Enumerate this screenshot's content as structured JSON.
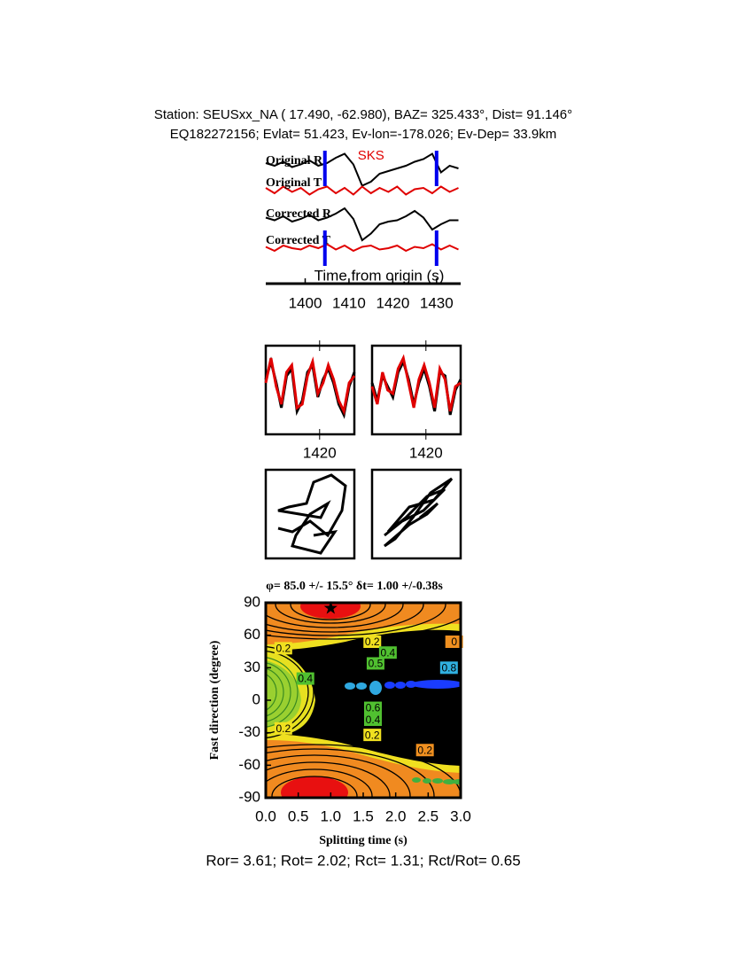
{
  "header": {
    "line1": "Station: SEUSxx_NA (  17.490,  -62.980), BAZ=  325.433°, Dist=   91.146°",
    "line2": "EQ182272156; Evlat=  51.423, Ev-lon=-178.026; Ev-Dep= 33.9km"
  },
  "chart_data": [
    {
      "type": "line",
      "xlabel": "Time from origin (s)",
      "annotation": "SKS",
      "annotation_color": "#e00000",
      "x": [
        1391,
        1393,
        1395,
        1397,
        1399,
        1401,
        1403,
        1405,
        1407,
        1409,
        1411,
        1413,
        1415,
        1417,
        1419,
        1421,
        1423,
        1425,
        1427,
        1429,
        1431,
        1433,
        1435
      ],
      "xlim": [
        1391,
        1435.5
      ],
      "xticks": [
        1400,
        1410,
        1420,
        1430
      ],
      "ylim": [
        -2,
        2
      ],
      "markers": [
        1404.5,
        1430
      ],
      "marker_color": "#0000ee",
      "series": [
        {
          "name": "Original R",
          "color": "#000000",
          "values": [
            0.4,
            0.2,
            0.5,
            0.1,
            0.3,
            0.6,
            0.2,
            0.4,
            0.8,
            1.1,
            0.3,
            -1.3,
            -1.0,
            -0.4,
            -0.2,
            0.0,
            0.2,
            0.5,
            0.7,
            1.1,
            -0.3,
            0.2,
            0.0
          ]
        },
        {
          "name": "Original T",
          "color": "#e00000",
          "values": [
            0.2,
            -0.2,
            0.3,
            -0.1,
            0.2,
            -0.3,
            0.1,
            0.3,
            -0.2,
            0.2,
            -0.3,
            0.3,
            -0.2,
            0.2,
            -0.1,
            0.3,
            -0.3,
            0.1,
            0.2,
            -0.2,
            0.3,
            -0.1,
            0.2
          ]
        },
        {
          "name": "Corrected R",
          "color": "#000000",
          "values": [
            0.3,
            0.1,
            0.4,
            0.0,
            0.2,
            0.5,
            0.1,
            0.3,
            0.6,
            1.0,
            0.2,
            -1.4,
            -0.9,
            -0.2,
            0.0,
            0.1,
            0.4,
            0.8,
            0.3,
            -0.6,
            -0.2,
            0.1,
            0.1
          ]
        },
        {
          "name": "Corrected T",
          "color": "#e00000",
          "values": [
            0.1,
            -0.2,
            0.2,
            0.0,
            -0.1,
            0.2,
            0.0,
            0.3,
            -0.1,
            0.2,
            -0.2,
            0.1,
            0.2,
            -0.1,
            0.0,
            0.2,
            -0.2,
            0.1,
            0.0,
            0.3,
            -0.1,
            0.2,
            -0.1
          ]
        }
      ]
    },
    {
      "type": "line",
      "x": [
        1404.5,
        1406,
        1407.5,
        1409,
        1410.5,
        1412,
        1413.5,
        1415,
        1416.5,
        1418,
        1419.5,
        1421,
        1422.5,
        1424,
        1425.5,
        1427,
        1428.5,
        1430
      ],
      "xlim": [
        1404.5,
        1430
      ],
      "xticks": [
        1420
      ],
      "ylim": [
        -1.25,
        1.25
      ],
      "series": [
        {
          "color": "#000000",
          "values": [
            0.3,
            0.8,
            0.2,
            -0.5,
            0.4,
            0.6,
            -0.6,
            -0.3,
            0.5,
            0.7,
            -0.2,
            0.3,
            0.6,
            0.2,
            -0.4,
            -0.7,
            0.1,
            0.5
          ]
        },
        {
          "color": "#e00000",
          "values": [
            0.2,
            0.9,
            0.1,
            -0.4,
            0.5,
            0.7,
            -0.5,
            -0.4,
            0.4,
            0.8,
            -0.1,
            0.2,
            0.7,
            0.3,
            -0.3,
            -0.6,
            0.2,
            0.4
          ]
        }
      ]
    },
    {
      "type": "line",
      "x": [
        1404.5,
        1406,
        1407.5,
        1409,
        1410.5,
        1412,
        1413.5,
        1415,
        1416.5,
        1418,
        1419.5,
        1421,
        1422.5,
        1424,
        1425.5,
        1427,
        1428.5,
        1430
      ],
      "xlim": [
        1404.5,
        1430
      ],
      "xticks": [
        1420
      ],
      "ylim": [
        -1.25,
        1.25
      ],
      "series": [
        {
          "color": "#000000",
          "values": [
            0.2,
            -0.3,
            0.4,
            0.1,
            -0.2,
            0.5,
            0.8,
            0.3,
            -0.4,
            0.2,
            0.6,
            0.1,
            -0.6,
            0.5,
            0.4,
            -0.7,
            0.0,
            0.3
          ]
        },
        {
          "color": "#e00000",
          "values": [
            0.1,
            -0.4,
            0.5,
            0.0,
            -0.1,
            0.6,
            0.9,
            0.2,
            -0.5,
            0.3,
            0.7,
            0.2,
            -0.5,
            0.6,
            0.3,
            -0.6,
            0.1,
            0.2
          ]
        }
      ]
    },
    {
      "type": "line",
      "x": [
        -0.9,
        -0.5,
        0.0,
        0.5,
        0.9,
        1.0,
        0.6,
        0.1,
        -0.1,
        -0.6,
        -0.9,
        -0.3,
        0.3,
        0.5,
        0.0,
        -0.4,
        -0.5,
        0.3,
        0.7,
        0.1
      ],
      "xlim": [
        -1.25,
        1.25
      ],
      "ylim": [
        -1.25,
        1.25
      ],
      "series": [
        {
          "color": "#000000",
          "values": [
            -0.4,
            -0.5,
            -0.2,
            -0.6,
            0.1,
            0.8,
            1.1,
            0.9,
            0.3,
            0.2,
            0.1,
            0.0,
            -0.1,
            0.3,
            0.0,
            -0.6,
            -0.9,
            -1.1,
            -0.5,
            -0.6
          ]
        }
      ]
    },
    {
      "type": "line",
      "x": [
        -0.9,
        -0.4,
        0.2,
        0.8,
        0.3,
        -0.3,
        -0.8,
        -0.2,
        0.5,
        1.0,
        0.4,
        -0.1,
        -0.6,
        -0.9,
        -0.2,
        0.3,
        0.6,
        0.1
      ],
      "xlim": [
        -1.25,
        1.25
      ],
      "ylim": [
        -1.25,
        1.25
      ],
      "series": [
        {
          "color": "#000000",
          "values": [
            -0.6,
            -0.2,
            0.1,
            0.7,
            0.5,
            -0.1,
            -0.5,
            0.2,
            0.4,
            1.0,
            0.6,
            -0.1,
            -0.7,
            -0.9,
            -0.3,
            0.0,
            0.3,
            -0.1
          ]
        }
      ]
    },
    {
      "type": "contour",
      "title": "φ= 85.0 +/- 15.5° δt= 1.00 +/-0.38s",
      "xlabel": "Splitting time (s)",
      "ylabel": "Fast direction (degree)",
      "xlim": [
        0,
        3
      ],
      "ylim": [
        -90,
        90
      ],
      "xticks": [
        {
          "value": 0,
          "label": "0.0"
        },
        {
          "value": 0.5,
          "label": "0.5"
        },
        {
          "value": 1,
          "label": "1.0"
        },
        {
          "value": 1.5,
          "label": "1.5"
        },
        {
          "value": 2,
          "label": "2.0"
        },
        {
          "value": 2.5,
          "label": "2.5"
        },
        {
          "value": 3,
          "label": "3.0"
        }
      ],
      "yticks": [
        -90,
        -60,
        -30,
        0,
        30,
        60,
        90
      ],
      "best": {
        "x": 1.0,
        "y": 85
      },
      "contour_labels": [
        {
          "value": 0.2,
          "x": 1.64,
          "y": 54,
          "color": "#f0e020"
        },
        {
          "value": 0.4,
          "x": 1.88,
          "y": 44,
          "color": "#50c030"
        },
        {
          "value": 0.5,
          "x": 1.69,
          "y": 34,
          "color": "#50c030"
        },
        {
          "value": 0,
          "x": 2.9,
          "y": 54,
          "color": "#f09020"
        },
        {
          "value": 0.8,
          "x": 2.82,
          "y": 30,
          "color": "#30b0e0"
        },
        {
          "value": 0.6,
          "x": 1.65,
          "y": -7,
          "color": "#50c030"
        },
        {
          "value": 0.4,
          "x": 1.65,
          "y": -18,
          "color": "#50c030"
        },
        {
          "value": 0.2,
          "x": 1.64,
          "y": -32,
          "color": "#f0e020"
        },
        {
          "value": 0.2,
          "x": 2.45,
          "y": -46,
          "color": "#f09020"
        },
        {
          "value": 0.2,
          "x": 0.27,
          "y": 48,
          "color": "#f0e020"
        },
        {
          "value": 0.2,
          "x": 0.27,
          "y": -26,
          "color": "#f0e020"
        },
        {
          "value": 0.4,
          "x": 0.61,
          "y": 20,
          "color": "#50c030"
        }
      ]
    }
  ],
  "footer": "Ror= 3.61; Rot= 2.02; Rct= 1.31; Rct/Rot= 0.65"
}
